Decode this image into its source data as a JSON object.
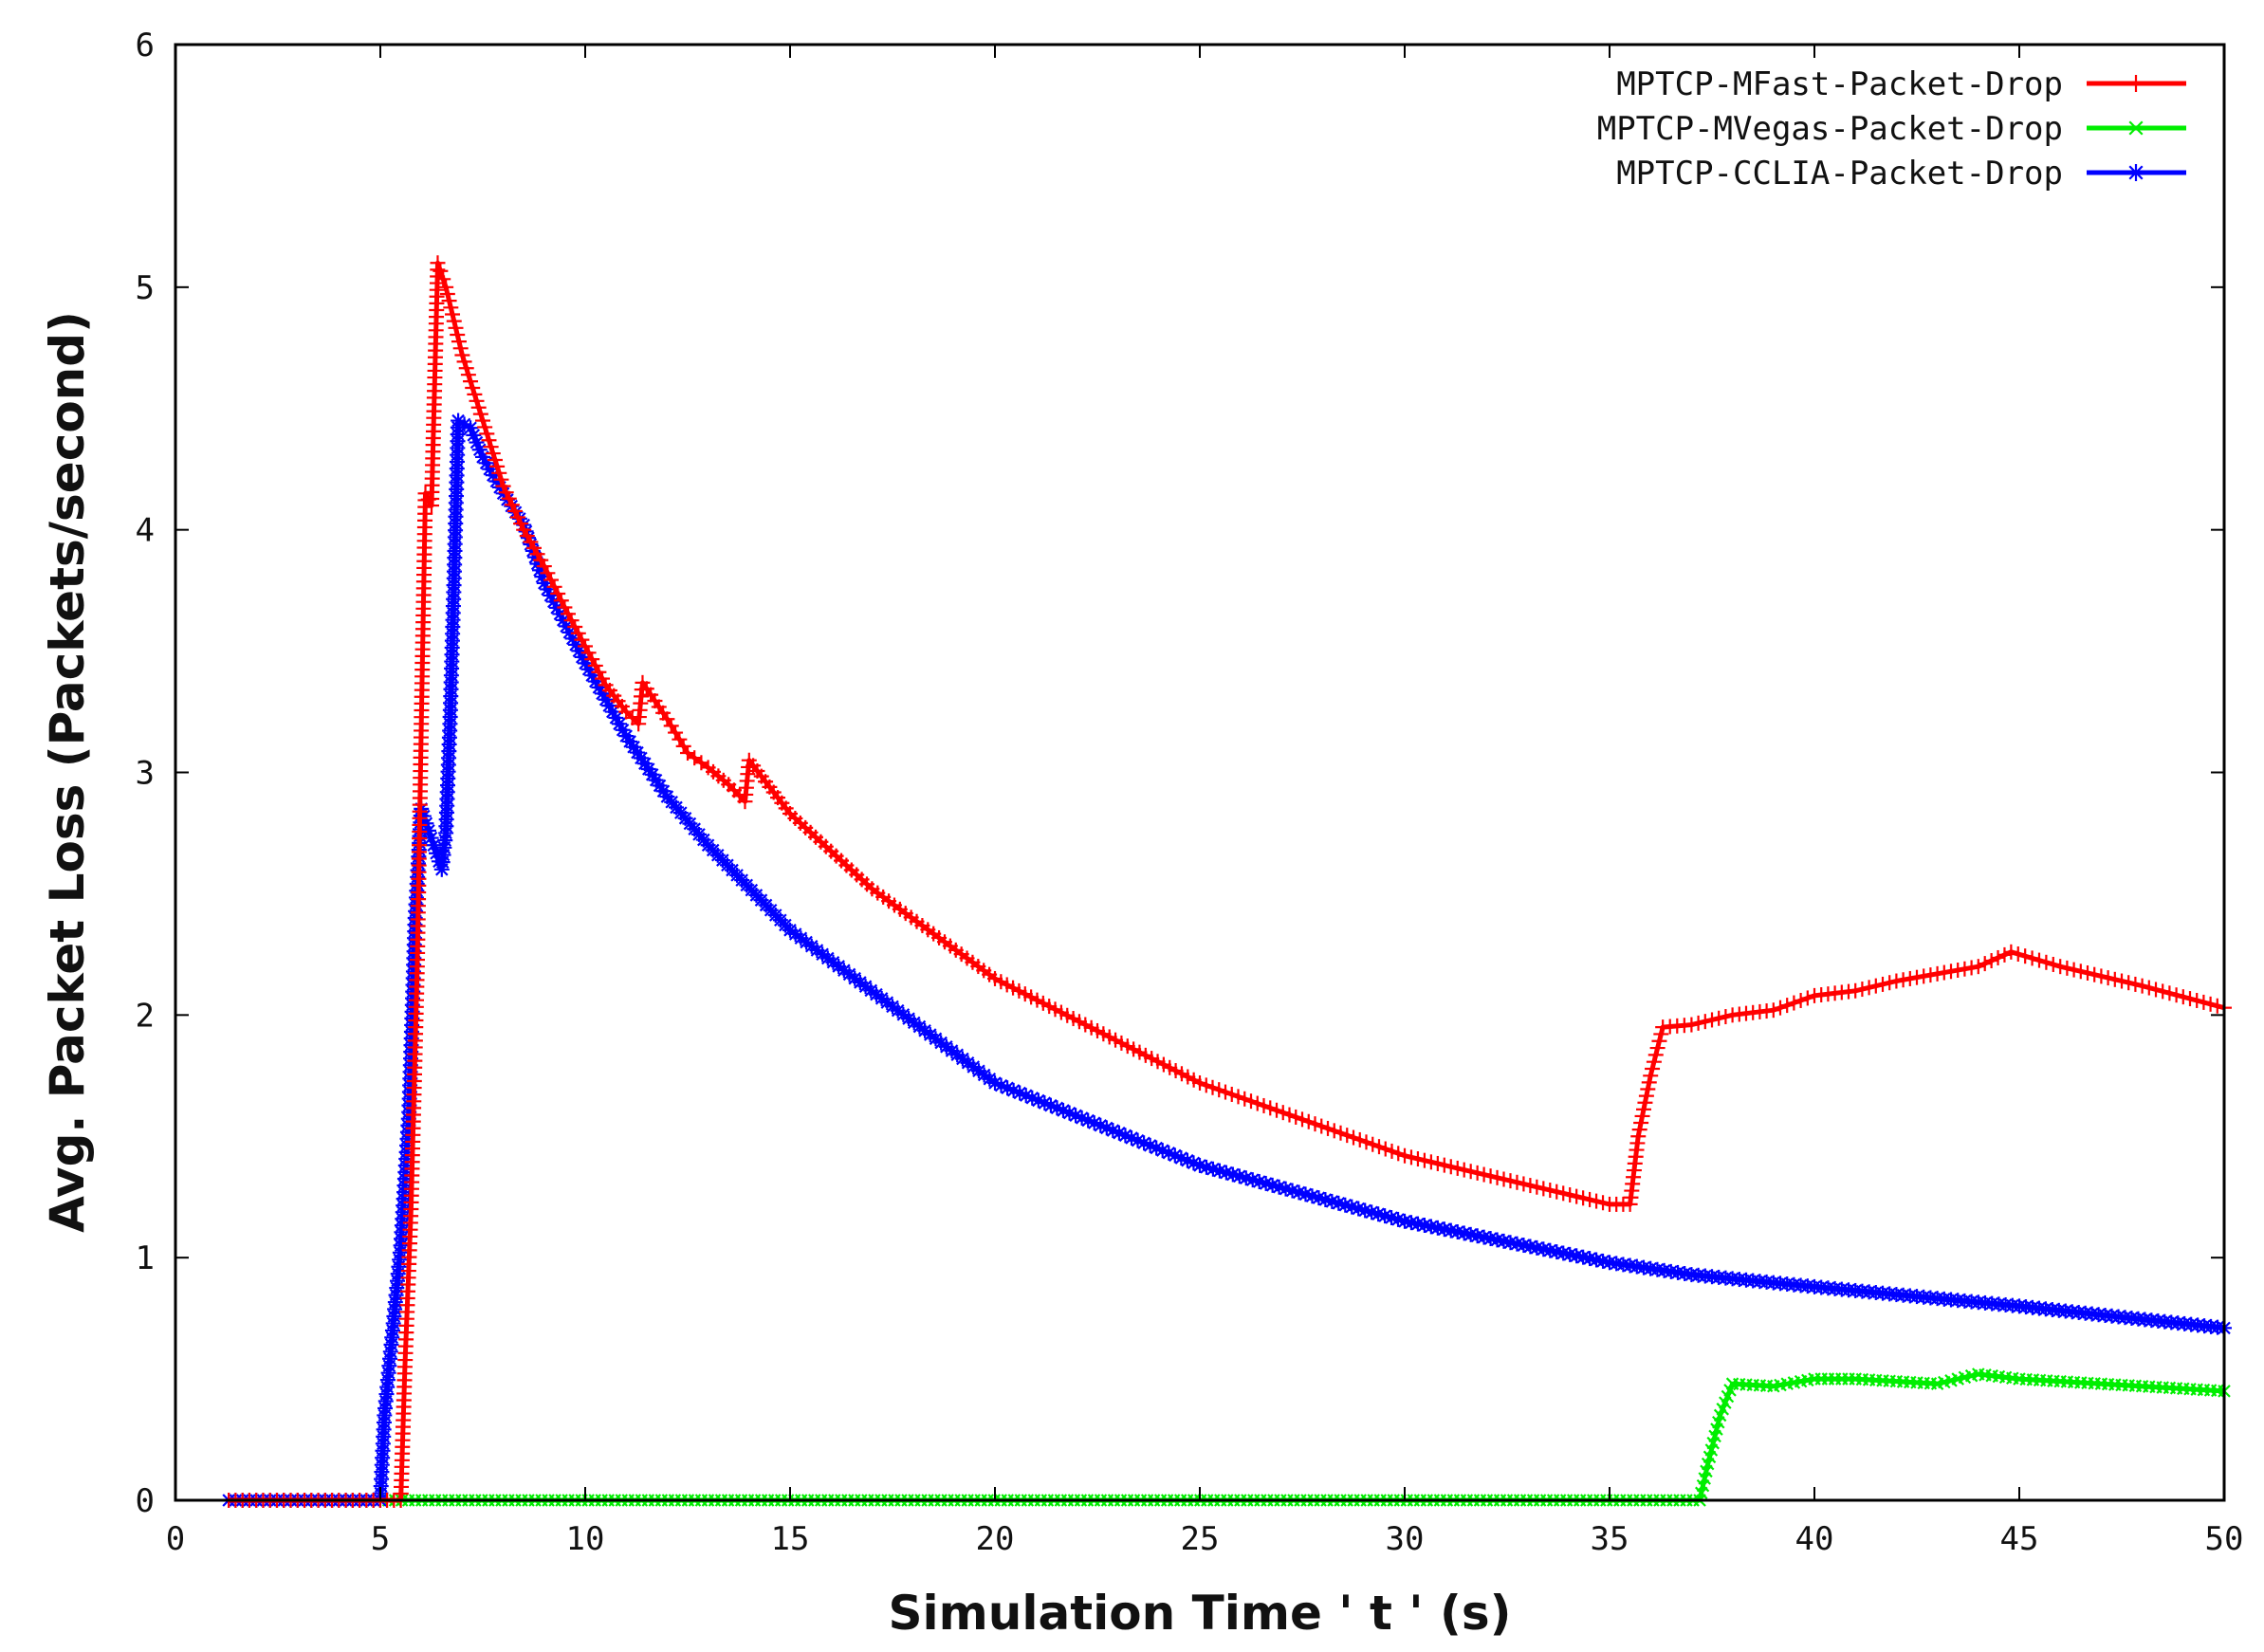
{
  "chart_data": {
    "type": "line",
    "title": "",
    "xlabel": "Simulation Time ' t ' (s)",
    "ylabel": "Avg. Packet Loss (Packets/second)",
    "xlim": [
      0,
      50
    ],
    "ylim": [
      0,
      6
    ],
    "xticks": [
      "0",
      "5",
      "10",
      "15",
      "20",
      "25",
      "30",
      "35",
      "40",
      "45",
      "50"
    ],
    "yticks": [
      "0",
      "1",
      "2",
      "3",
      "4",
      "5",
      "6"
    ],
    "grid": false,
    "legend_position": "top-right",
    "series": [
      {
        "name": "MPTCP-MFast-Packet-Drop",
        "color": "#ff0000",
        "marker": "plus",
        "points": [
          [
            1.3,
            0
          ],
          [
            5.5,
            0
          ],
          [
            5.6,
            0.55
          ],
          [
            5.75,
            1.2
          ],
          [
            5.9,
            2.2
          ],
          [
            6.0,
            3.2
          ],
          [
            6.1,
            4.15
          ],
          [
            6.25,
            4.1
          ],
          [
            6.4,
            5.1
          ],
          [
            6.6,
            5.0
          ],
          [
            7.0,
            4.72
          ],
          [
            7.5,
            4.45
          ],
          [
            8.0,
            4.18
          ],
          [
            8.5,
            4.0
          ],
          [
            9.0,
            3.85
          ],
          [
            9.5,
            3.68
          ],
          [
            10.0,
            3.52
          ],
          [
            10.5,
            3.36
          ],
          [
            11.0,
            3.25
          ],
          [
            11.3,
            3.2
          ],
          [
            11.4,
            3.37
          ],
          [
            12.0,
            3.22
          ],
          [
            12.5,
            3.08
          ],
          [
            13.0,
            3.02
          ],
          [
            13.5,
            2.95
          ],
          [
            13.9,
            2.88
          ],
          [
            14.0,
            3.05
          ],
          [
            15.0,
            2.83
          ],
          [
            17.0,
            2.52
          ],
          [
            20.0,
            2.15
          ],
          [
            25.0,
            1.72
          ],
          [
            30.0,
            1.42
          ],
          [
            35.0,
            1.22
          ],
          [
            35.5,
            1.22
          ],
          [
            35.7,
            1.5
          ],
          [
            36.0,
            1.75
          ],
          [
            36.3,
            1.95
          ],
          [
            37.0,
            1.96
          ],
          [
            38.0,
            2.0
          ],
          [
            39.0,
            2.02
          ],
          [
            40.0,
            2.08
          ],
          [
            41.0,
            2.1
          ],
          [
            42.0,
            2.14
          ],
          [
            43.0,
            2.17
          ],
          [
            44.0,
            2.2
          ],
          [
            44.8,
            2.26
          ],
          [
            46.0,
            2.2
          ],
          [
            48.0,
            2.12
          ],
          [
            50.0,
            2.03
          ]
        ]
      },
      {
        "name": "MPTCP-MVegas-Packet-Drop",
        "color": "#00ee00",
        "marker": "cross",
        "points": [
          [
            5.2,
            0
          ],
          [
            37.2,
            0
          ],
          [
            37.4,
            0.15
          ],
          [
            37.7,
            0.35
          ],
          [
            38.0,
            0.48
          ],
          [
            39.0,
            0.47
          ],
          [
            40.0,
            0.5
          ],
          [
            41.0,
            0.5
          ],
          [
            42.0,
            0.49
          ],
          [
            43.0,
            0.48
          ],
          [
            44.0,
            0.52
          ],
          [
            45.0,
            0.5
          ],
          [
            47.0,
            0.48
          ],
          [
            50.0,
            0.45
          ]
        ]
      },
      {
        "name": "MPTCP-CCLIA-Packet-Drop",
        "color": "#0000ff",
        "marker": "star",
        "points": [
          [
            1.3,
            0
          ],
          [
            5.0,
            0
          ],
          [
            5.1,
            0.35
          ],
          [
            5.3,
            0.7
          ],
          [
            5.5,
            1.05
          ],
          [
            5.7,
            1.6
          ],
          [
            5.85,
            2.4
          ],
          [
            6.0,
            2.85
          ],
          [
            6.3,
            2.7
          ],
          [
            6.5,
            2.6
          ],
          [
            6.6,
            2.75
          ],
          [
            6.7,
            3.2
          ],
          [
            6.8,
            3.8
          ],
          [
            6.9,
            4.45
          ],
          [
            7.2,
            4.42
          ],
          [
            7.5,
            4.3
          ],
          [
            8.0,
            4.15
          ],
          [
            8.5,
            4.02
          ],
          [
            9.0,
            3.78
          ],
          [
            10.0,
            3.45
          ],
          [
            11.0,
            3.15
          ],
          [
            12.0,
            2.9
          ],
          [
            13.0,
            2.7
          ],
          [
            15.0,
            2.35
          ],
          [
            20.0,
            1.72
          ],
          [
            25.0,
            1.38
          ],
          [
            30.0,
            1.15
          ],
          [
            35.0,
            0.98
          ],
          [
            37.0,
            0.93
          ],
          [
            40.0,
            0.88
          ],
          [
            45.0,
            0.8
          ],
          [
            50.0,
            0.71
          ]
        ]
      }
    ]
  }
}
